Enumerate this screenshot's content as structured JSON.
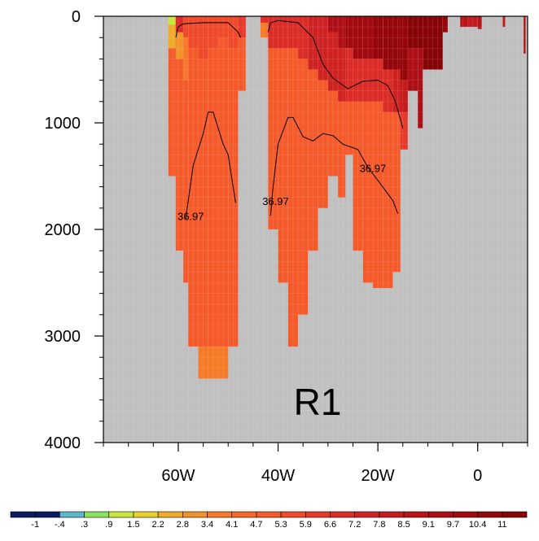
{
  "chart_data": {
    "type": "heatmap",
    "title": "",
    "xlabel": "",
    "ylabel": "",
    "panel_label": "R1",
    "x_axis": {
      "range": [
        -75,
        10
      ],
      "ticks": [
        {
          "value": -60,
          "label": "60W"
        },
        {
          "value": -40,
          "label": "40W"
        },
        {
          "value": -20,
          "label": "20W"
        },
        {
          "value": 0,
          "label": "0"
        }
      ],
      "minor_step": 5
    },
    "y_axis": {
      "range": [
        0,
        4000
      ],
      "inverted": true,
      "ticks": [
        {
          "value": 0,
          "label": "0"
        },
        {
          "value": 1000,
          "label": "1000"
        },
        {
          "value": 2000,
          "label": "2000"
        },
        {
          "value": 3000,
          "label": "3000"
        },
        {
          "value": 4000,
          "label": "4000"
        }
      ],
      "minor_step": 200
    },
    "background_color": "#c0c0c0",
    "colorbar": {
      "labels": [
        "-1",
        "-.4",
        ".3",
        ".9",
        "1.5",
        "2.2",
        "2.8",
        "3.4",
        "4.1",
        "4.7",
        "5.3",
        "5.9",
        "6.6",
        "7.2",
        "7.8",
        "8.5",
        "9.1",
        "9.7",
        "10.4",
        "11"
      ],
      "colors": [
        "#0c1a5e",
        "#5bb8c9",
        "#8fe05a",
        "#c8e63c",
        "#e6d22d",
        "#f0ab29",
        "#f4922a",
        "#f67a28",
        "#f6682a",
        "#f55a2b",
        "#ef4a2a",
        "#e6392a",
        "#db2c28",
        "#cf2323",
        "#c41c1e",
        "#b9141a",
        "#ae0e15",
        "#a20a10",
        "#95060b",
        "#870306"
      ]
    },
    "field_columns": [
      {
        "x0": -62,
        "x1": -60.5,
        "bottom": 1500,
        "color": "#f55a2b",
        "top_cells": [
          {
            "d0": 0,
            "d1": 80,
            "color": "#c8e63c"
          },
          {
            "d0": 80,
            "d1": 300,
            "color": "#f0ab29"
          }
        ]
      },
      {
        "x0": -60.5,
        "x1": -59,
        "bottom": 2200,
        "color": "#f55a2b",
        "top_cells": [
          {
            "d0": 0,
            "d1": 150,
            "color": "#db2c28"
          },
          {
            "d0": 150,
            "d1": 400,
            "color": "#f4922a"
          }
        ]
      },
      {
        "x0": -59,
        "x1": -58,
        "bottom": 2500,
        "color": "#f55a2b",
        "top_cells": [
          {
            "d0": 0,
            "d1": 200,
            "color": "#ef4a2a"
          },
          {
            "d0": 200,
            "d1": 600,
            "color": "#f67a28"
          }
        ]
      },
      {
        "x0": -58,
        "x1": -56,
        "bottom": 3100,
        "color": "#f55a2b",
        "top_cells": [
          {
            "d0": 0,
            "d1": 300,
            "color": "#ef4a2a"
          }
        ]
      },
      {
        "x0": -56,
        "x1": -54,
        "bottom": 3400,
        "color": "#f55a2b",
        "top_cells": [
          {
            "d0": 0,
            "d1": 400,
            "color": "#ef4a2a"
          }
        ],
        "bottom_cells": [
          {
            "d0": 3100,
            "d1": 3400,
            "color": "#f67a28"
          }
        ]
      },
      {
        "x0": -54,
        "x1": -52,
        "bottom": 3400,
        "color": "#f55a2b",
        "top_cells": [
          {
            "d0": 0,
            "d1": 300,
            "color": "#ef4a2a"
          }
        ],
        "bottom_cells": [
          {
            "d0": 3100,
            "d1": 3400,
            "color": "#f67a28"
          }
        ]
      },
      {
        "x0": -52,
        "x1": -50,
        "bottom": 3400,
        "color": "#f55a2b",
        "top_cells": [
          {
            "d0": 0,
            "d1": 200,
            "color": "#ef4a2a"
          }
        ],
        "bottom_cells": [
          {
            "d0": 3100,
            "d1": 3400,
            "color": "#f67a28"
          }
        ]
      },
      {
        "x0": -50,
        "x1": -48,
        "bottom": 3100,
        "color": "#f55a2b",
        "top_cells": [
          {
            "d0": 0,
            "d1": 300,
            "color": "#ef4a2a"
          }
        ]
      },
      {
        "x0": -48,
        "x1": -46.5,
        "bottom": 700,
        "color": "#f55a2b",
        "top_cells": [
          {
            "d0": 0,
            "d1": 200,
            "color": "#e6392a"
          }
        ]
      },
      {
        "x0": -43.5,
        "x1": -42,
        "bottom": 200,
        "color": "#f67a28",
        "top_cells": [
          {
            "d0": 0,
            "d1": 60,
            "color": "#db2c28"
          }
        ]
      },
      {
        "x0": -42,
        "x1": -40,
        "bottom": 2000,
        "color": "#f55a2b",
        "top_cells": [
          {
            "d0": 0,
            "d1": 300,
            "color": "#db2c28"
          }
        ]
      },
      {
        "x0": -40,
        "x1": -38,
        "bottom": 2500,
        "color": "#f55a2b",
        "top_cells": [
          {
            "d0": 0,
            "d1": 300,
            "color": "#db2c28"
          }
        ]
      },
      {
        "x0": -38,
        "x1": -36,
        "bottom": 3100,
        "color": "#f55a2b",
        "top_cells": [
          {
            "d0": 0,
            "d1": 300,
            "color": "#db2c28"
          }
        ]
      },
      {
        "x0": -36,
        "x1": -34,
        "bottom": 2800,
        "color": "#f55a2b",
        "top_cells": [
          {
            "d0": 0,
            "d1": 400,
            "color": "#db2c28"
          }
        ]
      },
      {
        "x0": -34,
        "x1": -32,
        "bottom": 2200,
        "color": "#f55a2b",
        "top_cells": [
          {
            "d0": 0,
            "d1": 500,
            "color": "#cf2323"
          }
        ]
      },
      {
        "x0": -32,
        "x1": -30,
        "bottom": 1800,
        "color": "#f55a2b",
        "top_cells": [
          {
            "d0": 0,
            "d1": 600,
            "color": "#cf2323"
          }
        ]
      },
      {
        "x0": -30,
        "x1": -28,
        "bottom": 1500,
        "color": "#f55a2b",
        "top_cells": [
          {
            "d0": 0,
            "d1": 150,
            "color": "#ae0e15"
          },
          {
            "d0": 150,
            "d1": 700,
            "color": "#cf2323"
          }
        ]
      },
      {
        "x0": -28,
        "x1": -26.5,
        "bottom": 1700,
        "color": "#f55a2b",
        "top_cells": [
          {
            "d0": 0,
            "d1": 300,
            "color": "#ae0e15"
          },
          {
            "d0": 300,
            "d1": 800,
            "color": "#cf2323"
          }
        ]
      },
      {
        "x0": -26.5,
        "x1": -25,
        "bottom": 1300,
        "color": "#f55a2b",
        "top_cells": [
          {
            "d0": 0,
            "d1": 300,
            "color": "#a20a10"
          },
          {
            "d0": 300,
            "d1": 800,
            "color": "#db2c28"
          }
        ]
      },
      {
        "x0": -25,
        "x1": -23,
        "bottom": 2200,
        "color": "#f55a2b",
        "top_cells": [
          {
            "d0": 0,
            "d1": 400,
            "color": "#a20a10"
          },
          {
            "d0": 400,
            "d1": 800,
            "color": "#db2c28"
          }
        ]
      },
      {
        "x0": -23,
        "x1": -21,
        "bottom": 2500,
        "color": "#f55a2b",
        "top_cells": [
          {
            "d0": 0,
            "d1": 400,
            "color": "#a20a10"
          },
          {
            "d0": 400,
            "d1": 800,
            "color": "#db2c28"
          }
        ]
      },
      {
        "x0": -21,
        "x1": -19,
        "bottom": 2550,
        "color": "#f55a2b",
        "top_cells": [
          {
            "d0": 0,
            "d1": 400,
            "color": "#95060b"
          },
          {
            "d0": 400,
            "d1": 800,
            "color": "#db2c28"
          }
        ]
      },
      {
        "x0": -19,
        "x1": -17,
        "bottom": 2550,
        "color": "#f55a2b",
        "top_cells": [
          {
            "d0": 0,
            "d1": 500,
            "color": "#95060b"
          },
          {
            "d0": 500,
            "d1": 900,
            "color": "#db2c28"
          }
        ]
      },
      {
        "x0": -17,
        "x1": -15.5,
        "bottom": 2400,
        "color": "#f55a2b",
        "top_cells": [
          {
            "d0": 0,
            "d1": 500,
            "color": "#95060b"
          },
          {
            "d0": 500,
            "d1": 900,
            "color": "#cf2323"
          }
        ]
      },
      {
        "x0": -15.5,
        "x1": -14,
        "bottom": 1250,
        "color": "#e6392a",
        "top_cells": [
          {
            "d0": 0,
            "d1": 600,
            "color": "#95060b"
          },
          {
            "d0": 600,
            "d1": 900,
            "color": "#c41c1e"
          }
        ]
      },
      {
        "x0": -14,
        "x1": -12,
        "bottom": 700,
        "color": "#ae0e15",
        "top_cells": [
          {
            "d0": 0,
            "d1": 300,
            "color": "#870306"
          }
        ]
      },
      {
        "x0": -12,
        "x1": -11,
        "bottom": 1050,
        "color": "#ae0e15",
        "top_cells": [
          {
            "d0": 0,
            "d1": 300,
            "color": "#870306"
          }
        ]
      },
      {
        "x0": -11,
        "x1": -7,
        "bottom": 500,
        "color": "#870306"
      },
      {
        "x0": -7,
        "x1": -6,
        "bottom": 150,
        "color": "#95060b"
      },
      {
        "x0": -3.5,
        "x1": -2,
        "bottom": 100,
        "color": "#b9141a"
      },
      {
        "x0": -2,
        "x1": 0,
        "bottom": 100,
        "color": "#c41c1e"
      },
      {
        "x0": 0,
        "x1": 0.8,
        "bottom": 120,
        "color": "#b9141a"
      },
      {
        "x0": 5,
        "x1": 5.5,
        "bottom": 100,
        "color": "#c41c1e"
      },
      {
        "x0": 9.2,
        "x1": 9.6,
        "bottom": 350,
        "color": "#b9141a"
      }
    ],
    "contours": [
      {
        "points": [
          [
            -60.5,
            200
          ],
          [
            -60,
            100
          ],
          [
            -59,
            70
          ],
          [
            -55,
            60
          ],
          [
            -50,
            60
          ],
          [
            -48,
            150
          ],
          [
            -47.5,
            200
          ]
        ]
      },
      {
        "points": [
          [
            -42,
            150
          ],
          [
            -41.5,
            60
          ],
          [
            -40,
            40
          ],
          [
            -36,
            60
          ],
          [
            -33,
            200
          ],
          [
            -31,
            450
          ],
          [
            -29,
            580
          ],
          [
            -26,
            680
          ],
          [
            -23,
            610
          ],
          [
            -20,
            600
          ],
          [
            -18,
            650
          ],
          [
            -16.5,
            800
          ],
          [
            -15,
            1050
          ]
        ]
      },
      {
        "points": [
          [
            -58.5,
            1900
          ],
          [
            -57,
            1400
          ],
          [
            -55,
            1100
          ],
          [
            -54,
            900
          ],
          [
            -53,
            900
          ],
          [
            -51,
            1200
          ],
          [
            -50,
            1300
          ],
          [
            -48.5,
            1750
          ]
        ]
      },
      {
        "points": [
          [
            -41.5,
            1870
          ],
          [
            -41,
            1600
          ],
          [
            -40,
            1200
          ],
          [
            -38,
            950
          ],
          [
            -37,
            950
          ],
          [
            -35,
            1130
          ],
          [
            -33,
            1170
          ],
          [
            -31,
            1100
          ],
          [
            -29,
            1120
          ],
          [
            -27,
            1200
          ],
          [
            -24,
            1250
          ],
          [
            -22,
            1420
          ],
          [
            -20,
            1540
          ],
          [
            -17,
            1730
          ],
          [
            -16,
            1850
          ]
        ]
      }
    ],
    "contour_labels": [
      {
        "text": "36.97",
        "x": -57.5,
        "depth": 1880
      },
      {
        "text": "36.97",
        "x": -40.5,
        "depth": 1740
      },
      {
        "text": "36.97",
        "x": -21,
        "depth": 1430
      }
    ],
    "topography": [
      [
        -75,
        0
      ],
      [
        -62.5,
        0
      ],
      [
        -62.5,
        1500
      ],
      [
        -61,
        1500
      ],
      [
        -61,
        2200
      ],
      [
        -59.5,
        2200
      ],
      [
        -59.5,
        2500
      ],
      [
        -58,
        2500
      ],
      [
        -58,
        3100
      ],
      [
        -56,
        3100
      ],
      [
        -56,
        3400
      ],
      [
        -52,
        3400
      ],
      [
        -52,
        3100
      ],
      [
        -48,
        3100
      ],
      [
        -48,
        700
      ],
      [
        -46.5,
        700
      ],
      [
        -46.5,
        0
      ],
      [
        -44,
        0
      ],
      [
        -44,
        200
      ],
      [
        -42,
        200
      ],
      [
        -42,
        2000
      ],
      [
        -40,
        2000
      ],
      [
        -40,
        2500
      ],
      [
        -38,
        2500
      ],
      [
        -38,
        3100
      ],
      [
        -35,
        3100
      ],
      [
        -35,
        2800
      ],
      [
        -34,
        2800
      ],
      [
        -34,
        2200
      ],
      [
        -32,
        2200
      ],
      [
        -32,
        1800
      ],
      [
        -30,
        1800
      ],
      [
        -30,
        1500
      ],
      [
        -28,
        1500
      ],
      [
        -28,
        1700
      ],
      [
        -26.5,
        1700
      ],
      [
        -26.5,
        1300
      ],
      [
        -25,
        1300
      ],
      [
        -25,
        2200
      ],
      [
        -23,
        2200
      ],
      [
        -23,
        2500
      ],
      [
        -21,
        2500
      ],
      [
        -21,
        2550
      ],
      [
        -15.5,
        2550
      ],
      [
        -15.5,
        1250
      ],
      [
        -14,
        1250
      ],
      [
        -14,
        1050
      ],
      [
        -11,
        1050
      ],
      [
        -11,
        500
      ],
      [
        -7,
        500
      ],
      [
        -7,
        150
      ],
      [
        -6,
        150
      ],
      [
        -6,
        0
      ],
      [
        10,
        0
      ],
      [
        10,
        4000
      ],
      [
        -75,
        4000
      ]
    ]
  }
}
